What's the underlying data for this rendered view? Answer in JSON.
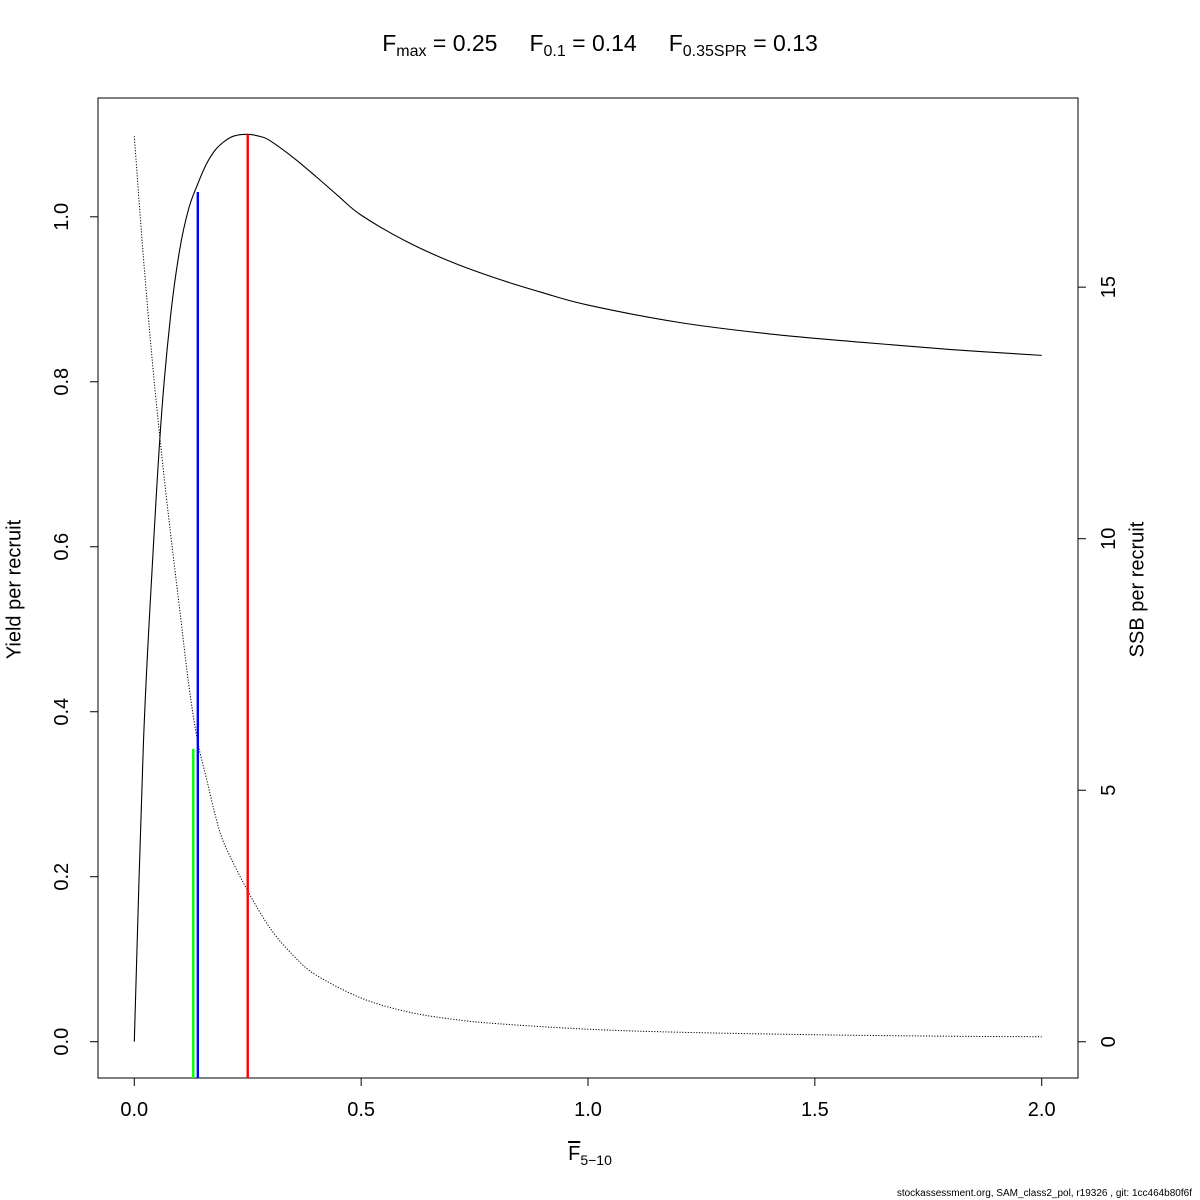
{
  "title": {
    "fmax_label": "F",
    "fmax_sub": "max",
    "fmax_value": "= 0.25",
    "f01_label": "F",
    "f01_sub": "0.1",
    "f01_value": "= 0.14",
    "fspr_label": "F",
    "fspr_sub": "0.35SPR",
    "fspr_value": "= 0.13"
  },
  "xlabel": {
    "main": "F",
    "sub": "5−10"
  },
  "ylabel_left": "Yield per recruit",
  "ylabel_right": "SSB per recruit",
  "footer": "stockassessment.org, SAM_class2_pol, r19326 , git: 1cc464b80f6f",
  "chart_data": {
    "type": "line",
    "xlim": [
      -0.08,
      2.08
    ],
    "ylim": [
      -0.044,
      1.144
    ],
    "y2lim": [
      -0.72,
      18.76
    ],
    "x_ticks": [
      0.0,
      0.5,
      1.0,
      1.5,
      2.0
    ],
    "x_tick_labels": [
      "0.0",
      "0.5",
      "1.0",
      "1.5",
      "2.0"
    ],
    "y_ticks": [
      0.0,
      0.2,
      0.4,
      0.6,
      0.8,
      1.0
    ],
    "y_tick_labels": [
      "0.0",
      "0.2",
      "0.4",
      "0.6",
      "0.8",
      "1.0"
    ],
    "y2_ticks": [
      0,
      5,
      10,
      15
    ],
    "y2_tick_labels": [
      "0",
      "5",
      "10",
      "15"
    ],
    "grid": false,
    "series": [
      {
        "axis": "left",
        "style": "solid",
        "color": "#000000",
        "x": [
          0.0,
          0.02,
          0.04,
          0.06,
          0.08,
          0.1,
          0.12,
          0.14,
          0.16,
          0.18,
          0.2,
          0.22,
          0.25,
          0.28,
          0.3,
          0.35,
          0.4,
          0.45,
          0.5,
          0.6,
          0.7,
          0.8,
          0.9,
          1.0,
          1.2,
          1.4,
          1.6,
          1.8,
          2.0
        ],
        "y": [
          0.0,
          0.36,
          0.58,
          0.76,
          0.88,
          0.96,
          1.01,
          1.04,
          1.065,
          1.082,
          1.092,
          1.098,
          1.1,
          1.097,
          1.092,
          1.072,
          1.049,
          1.025,
          1.002,
          0.97,
          0.945,
          0.925,
          0.908,
          0.893,
          0.872,
          0.858,
          0.848,
          0.839,
          0.832
        ]
      },
      {
        "axis": "right",
        "style": "dotted",
        "color": "#000000",
        "x": [
          0.0,
          0.02,
          0.04,
          0.06,
          0.08,
          0.1,
          0.12,
          0.14,
          0.16,
          0.18,
          0.2,
          0.25,
          0.3,
          0.35,
          0.4,
          0.5,
          0.6,
          0.7,
          0.8,
          1.0,
          1.2,
          1.5,
          1.8,
          2.0
        ],
        "y": [
          18.0,
          15.6,
          13.5,
          11.7,
          10.1,
          8.6,
          7.1,
          5.95,
          5.2,
          4.45,
          3.9,
          3.0,
          2.25,
          1.72,
          1.33,
          0.87,
          0.6,
          0.45,
          0.36,
          0.25,
          0.19,
          0.14,
          0.11,
          0.1
        ]
      }
    ],
    "reference_lines": [
      {
        "name": "Fmax",
        "x": 0.25,
        "y_top": 1.1,
        "color": "#ff0000"
      },
      {
        "name": "F0.1",
        "x": 0.14,
        "y_top": 1.03,
        "color": "#0000ff"
      },
      {
        "name": "F0.35SPR",
        "x": 0.13,
        "y_top": 0.355,
        "color": "#00ff00"
      }
    ]
  }
}
